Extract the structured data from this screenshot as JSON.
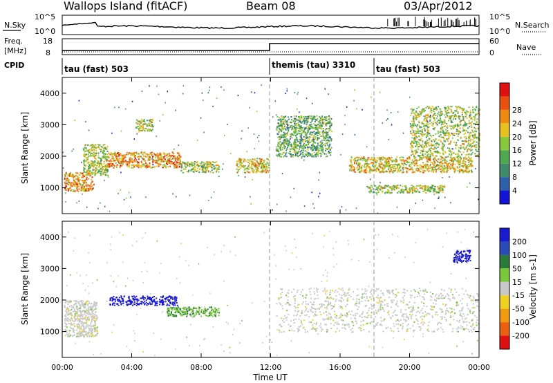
{
  "header": {
    "station": "Wallops Island (fitACF)",
    "beam": "Beam 08",
    "date": "03/Apr/2012"
  },
  "noise_panel": {
    "left_label": "N.Sky",
    "right_label": "N.Search",
    "left_ticks": [
      "10^5",
      "10^0"
    ],
    "right_ticks": [
      "10^5",
      "10^0"
    ]
  },
  "freq_panel": {
    "left_label_line1": "Freq.",
    "left_label_line2": "[MHz]",
    "right_label": "Nave",
    "left_ticks": [
      "18",
      "8"
    ],
    "right_ticks": [
      "60",
      "0"
    ]
  },
  "cpid": {
    "label": "CPID",
    "segments": [
      {
        "start_hour": 0,
        "name": "tau (fast) 503"
      },
      {
        "start_hour": 12,
        "name": "themis (tau) 3310"
      },
      {
        "start_hour": 18,
        "name": "tau (fast) 503"
      }
    ]
  },
  "power_panel": {
    "ylabel": "Slant Range [km]",
    "yticks": [
      "1000",
      "2000",
      "3000",
      "4000"
    ],
    "colorbar_label": "Power [dB]",
    "colorbar_ticks": [
      "4",
      "8",
      "12",
      "16",
      "20",
      "24",
      "28"
    ],
    "colors": [
      "#1414d8",
      "#2e5fa8",
      "#3f8a6a",
      "#4fa84f",
      "#88c83a",
      "#e8c020",
      "#f08a10",
      "#e85010",
      "#e01010"
    ]
  },
  "velocity_panel": {
    "ylabel": "Slant Range [km]",
    "yticks": [
      "1000",
      "2000",
      "3000",
      "4000"
    ],
    "colorbar_label": "Velocity [m s-1]",
    "colorbar_ticks": [
      "200",
      "100",
      "50",
      "15",
      "-15",
      "-50",
      "-100",
      "-200"
    ],
    "colors": [
      "#1a1ad0",
      "#2a4ab8",
      "#2a7a3a",
      "#7ac83a",
      "#c8c8c8",
      "#f0d020",
      "#f09a10",
      "#e86010",
      "#e01010"
    ]
  },
  "xaxis": {
    "xlabel": "Time UT",
    "ticks": [
      "00:00",
      "04:00",
      "08:00",
      "12:00",
      "16:00",
      "20:00",
      "00:00"
    ]
  },
  "chart_data": {
    "type": "heatmap",
    "title": "Wallops Island (fitACF)",
    "x_range_hours": [
      0,
      24
    ],
    "y_range_km": [
      180,
      4500
    ],
    "power_regions": [
      {
        "t0": 0.1,
        "t1": 1.8,
        "r0": 900,
        "r1": 1500,
        "level": 24
      },
      {
        "t0": 1.2,
        "t1": 2.6,
        "r0": 1400,
        "r1": 2400,
        "level": 16
      },
      {
        "t0": 2.6,
        "t1": 6.8,
        "r0": 1650,
        "r1": 2150,
        "level": 22
      },
      {
        "t0": 4.2,
        "t1": 5.2,
        "r0": 2800,
        "r1": 3200,
        "level": 14
      },
      {
        "t0": 6.8,
        "t1": 9.0,
        "r0": 1500,
        "r1": 1850,
        "level": 14
      },
      {
        "t0": 10.0,
        "t1": 11.9,
        "r0": 1500,
        "r1": 1950,
        "level": 18
      },
      {
        "t0": 12.3,
        "t1": 15.5,
        "r0": 2000,
        "r1": 3300,
        "level": 10
      },
      {
        "t0": 16.5,
        "t1": 23.6,
        "r0": 1500,
        "r1": 2000,
        "level": 20
      },
      {
        "t0": 17.5,
        "t1": 22.0,
        "r0": 850,
        "r1": 1100,
        "level": 14
      },
      {
        "t0": 20.0,
        "t1": 24.0,
        "r0": 2000,
        "r1": 3600,
        "level": 14
      }
    ],
    "velocity_regions": [
      {
        "t0": 0.1,
        "t1": 2.0,
        "r0": 850,
        "r1": 2000,
        "v": 0
      },
      {
        "t0": 2.7,
        "t1": 6.6,
        "r0": 1850,
        "r1": 2150,
        "v": 180
      },
      {
        "t0": 6.0,
        "t1": 9.0,
        "r0": 1500,
        "r1": 1800,
        "v": 35
      },
      {
        "t0": 12.3,
        "t1": 24.0,
        "r0": 1000,
        "r1": 2400,
        "v": 0
      },
      {
        "t0": 22.5,
        "t1": 23.5,
        "r0": 3200,
        "r1": 3600,
        "v": 200
      }
    ]
  }
}
